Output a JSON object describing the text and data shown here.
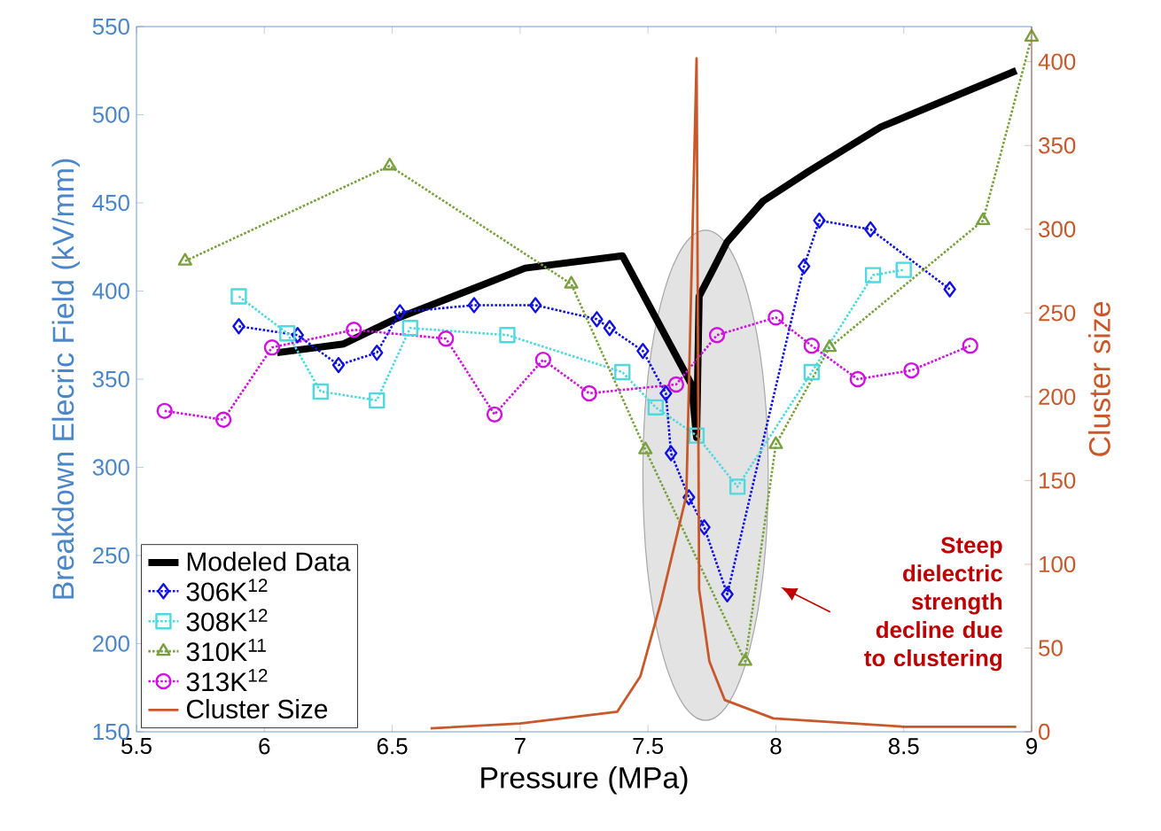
{
  "chart_data": {
    "type": "line",
    "xlabel": "Pressure (MPa)",
    "ylabel": "Breakdown Elecric Field (kV/mm)",
    "y2label": "Cluster size",
    "xlim": [
      5.5,
      9
    ],
    "xticks": [
      5.5,
      6,
      6.5,
      7,
      7.5,
      8,
      8.5,
      9
    ],
    "ylim": [
      150,
      550
    ],
    "yticks": [
      150,
      200,
      250,
      300,
      350,
      400,
      450,
      500,
      550
    ],
    "y2lim": [
      0,
      421
    ],
    "y2ticks": [
      0,
      50,
      100,
      150,
      200,
      250,
      300,
      350,
      400
    ],
    "legend": "bottom left",
    "grid": false,
    "annotations": [
      "Steep dielectric strength decline due to clustering"
    ],
    "series": [
      {
        "name": "Modeled Data",
        "color": "#000000",
        "marker": "none",
        "line_style": "solid",
        "x": [
          6.05,
          6.31,
          6.51,
          6.81,
          7.02,
          7.4,
          7.67,
          7.69,
          7.7,
          7.75,
          7.81,
          7.95,
          8.13,
          8.41,
          8.94
        ],
        "values": [
          365,
          370,
          384,
          401,
          413,
          420,
          347,
          317,
          397,
          411,
          428,
          451,
          468,
          493,
          525
        ]
      },
      {
        "name": "306K$^{12}$",
        "color": "#1010e0",
        "marker": "diamond",
        "line_style": "dotted",
        "x": [
          5.9,
          6.13,
          6.29,
          6.44,
          6.53,
          6.82,
          7.06,
          7.3,
          7.35,
          7.48,
          7.57,
          7.59,
          7.66,
          7.72,
          7.81,
          8.11,
          8.17,
          8.37,
          8.68
        ],
        "values": [
          380,
          375,
          358,
          365,
          388,
          392,
          392,
          384,
          379,
          366,
          342,
          308,
          283,
          266,
          228,
          414,
          440,
          435,
          401
        ]
      },
      {
        "name": "308K$^{12}$",
        "color": "#4fd8e0",
        "marker": "square",
        "line_style": "dotted",
        "x": [
          5.9,
          6.09,
          6.22,
          6.44,
          6.57,
          6.95,
          7.4,
          7.53,
          7.69,
          7.85,
          8.14,
          8.38,
          8.5
        ],
        "values": [
          397,
          376,
          343,
          338,
          379,
          375,
          354,
          334,
          318,
          289,
          354,
          409,
          412
        ]
      },
      {
        "name": "310K$^{11}$",
        "color": "#78a03c",
        "marker": "triangle",
        "line_style": "dotted",
        "x": [
          5.69,
          6.49,
          7.2,
          7.49,
          7.88,
          8.0,
          8.21,
          8.81,
          9.0
        ],
        "values": [
          417,
          471,
          404,
          310,
          190,
          313,
          368,
          440,
          544
        ]
      },
      {
        "name": "313K$^{12}$",
        "color": "#d010e0",
        "marker": "circle",
        "line_style": "dotted",
        "x": [
          5.61,
          5.84,
          6.03,
          6.35,
          6.71,
          6.9,
          7.09,
          7.27,
          7.61,
          7.77,
          8.0,
          8.14,
          8.32,
          8.53,
          8.76
        ],
        "values": [
          332,
          327,
          368,
          378,
          373,
          330,
          361,
          342,
          347,
          375,
          385,
          369,
          350,
          355,
          369
        ]
      },
      {
        "name": "Cluster Size",
        "color": "#c8582a",
        "marker": "none",
        "line_style": "solid",
        "axis": "y2",
        "x": [
          6.65,
          7.0,
          7.38,
          7.47,
          7.55,
          7.65,
          7.69,
          7.7,
          7.74,
          7.8,
          7.99,
          8.5,
          8.94
        ],
        "values": [
          2,
          5,
          12,
          33,
          77,
          141,
          402,
          85,
          42,
          19,
          8,
          3,
          3
        ]
      }
    ]
  }
}
